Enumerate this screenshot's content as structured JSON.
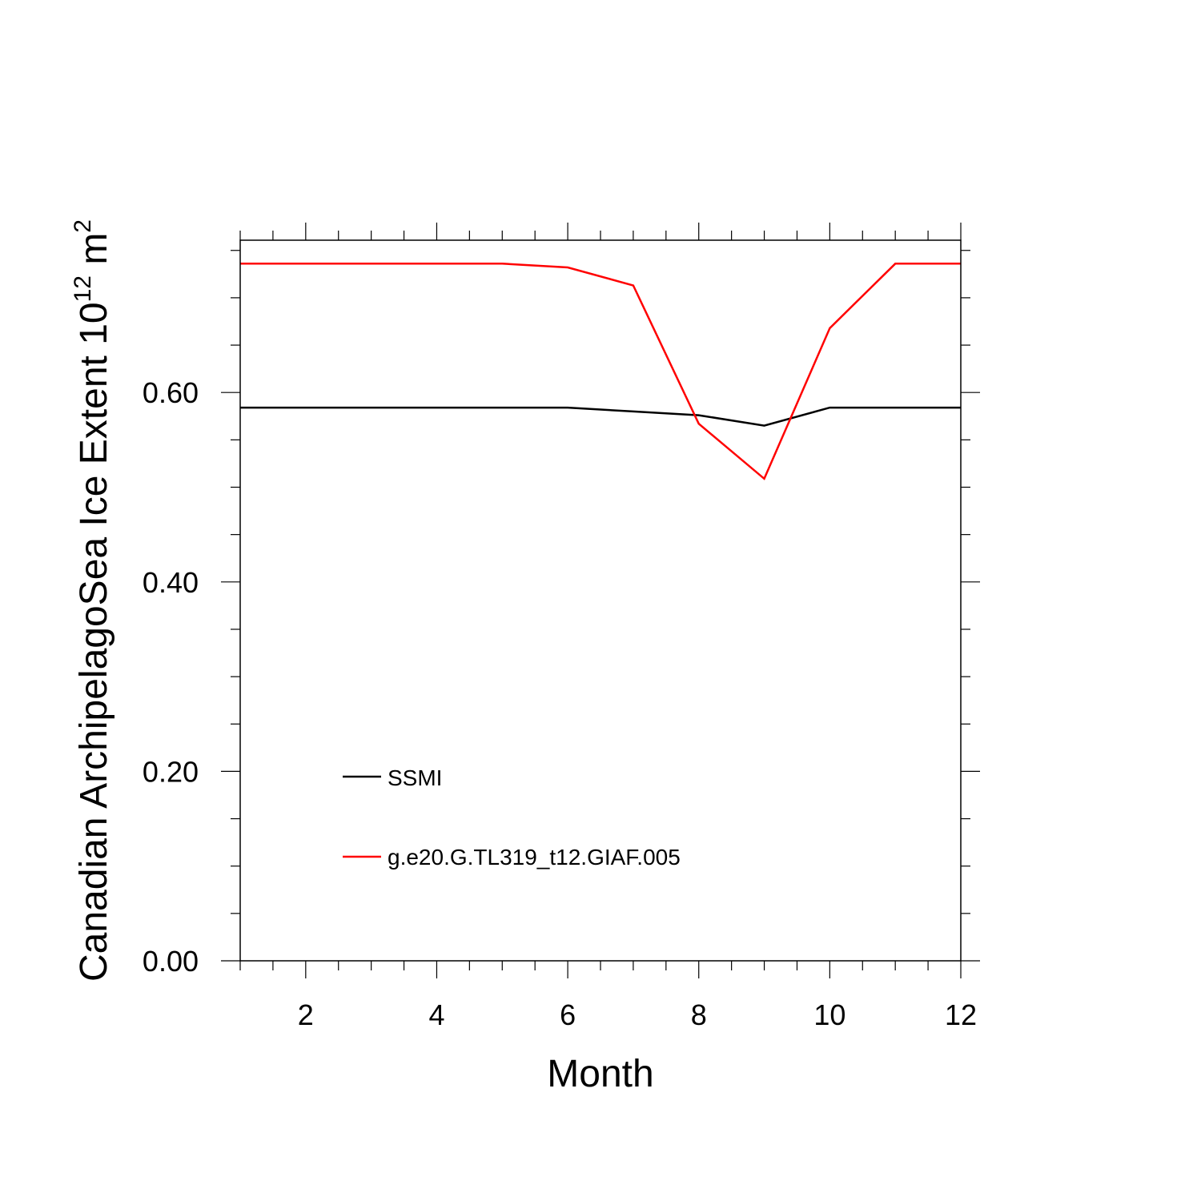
{
  "chart_data": {
    "type": "line",
    "xlabel": "Month",
    "ylabel": {
      "main": "Canadian ArchipelagoSea Ice Extent 10",
      "exp1": "12",
      "unit": " m",
      "exp2": "2"
    },
    "xlim": [
      1,
      12
    ],
    "ylim": [
      0,
      0.76
    ],
    "xticks": [
      2,
      4,
      6,
      8,
      10,
      12
    ],
    "xtick_labels": [
      "2",
      "4",
      "6",
      "8",
      "10",
      "12"
    ],
    "yticks": [
      0.0,
      0.2,
      0.4,
      0.6
    ],
    "ytick_labels": [
      "0.00",
      "0.20",
      "0.40",
      "0.60"
    ],
    "x": [
      1,
      2,
      3,
      4,
      5,
      6,
      7,
      8,
      9,
      10,
      11,
      12
    ],
    "series": [
      {
        "name": "SSMI",
        "color": "#000000",
        "values": [
          0.584,
          0.584,
          0.584,
          0.584,
          0.584,
          0.584,
          0.58,
          0.576,
          0.565,
          0.584,
          0.584,
          0.584
        ]
      },
      {
        "name": "g.e20.G.TL319_t12.GIAF.005",
        "color": "#ff0000",
        "values": [
          0.736,
          0.736,
          0.736,
          0.736,
          0.736,
          0.732,
          0.713,
          0.567,
          0.509,
          0.668,
          0.736,
          0.736
        ]
      }
    ],
    "grid": false,
    "legend_position": "lower-left"
  }
}
